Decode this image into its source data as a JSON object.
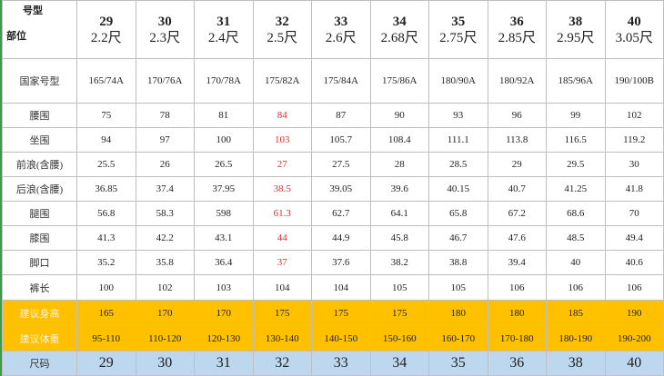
{
  "table": {
    "corner": [
      "号型",
      "部位"
    ],
    "columns": [
      {
        "size": "29",
        "length": "2.2尺"
      },
      {
        "size": "30",
        "length": "2.3尺"
      },
      {
        "size": "31",
        "length": "2.4尺"
      },
      {
        "size": "32",
        "length": "2.5尺"
      },
      {
        "size": "33",
        "length": "2.6尺"
      },
      {
        "size": "34",
        "length": "2.68尺"
      },
      {
        "size": "35",
        "length": "2.75尺"
      },
      {
        "size": "36",
        "length": "2.85尺"
      },
      {
        "size": "38",
        "length": "2.95尺"
      },
      {
        "size": "40",
        "length": "3.05尺"
      }
    ],
    "rows": [
      {
        "label": "国家号型",
        "cells": [
          "165/74A",
          "170/76A",
          "170/78A",
          "175/82A",
          "175/84A",
          "175/86A",
          "180/90A",
          "180/92A",
          "185/96A",
          "190/100B"
        ]
      },
      {
        "label": "腰围",
        "cells": [
          "75",
          "78",
          "81",
          "84",
          "87",
          "90",
          "93",
          "96",
          "99",
          "102"
        ],
        "highlight_cell": 3,
        "highlight_color": "#e0302e"
      },
      {
        "label": "坐围",
        "cells": [
          "94",
          "97",
          "100",
          "103",
          "105.7",
          "108.4",
          "111.1",
          "113.8",
          "116.5",
          "119.2"
        ],
        "highlight_cell": 3,
        "highlight_color": "#e0302e"
      },
      {
        "label": "前浪(含腰)",
        "cells": [
          "25.5",
          "26",
          "26.5",
          "27",
          "27.5",
          "28",
          "28.5",
          "29",
          "29.5",
          "30"
        ],
        "highlight_cell": 3,
        "highlight_color": "#e0302e"
      },
      {
        "label": "后浪(含腰)",
        "cells": [
          "36.85",
          "37.4",
          "37.95",
          "38.5",
          "39.05",
          "39.6",
          "40.15",
          "40.7",
          "41.25",
          "41.8"
        ],
        "highlight_cell": 3,
        "highlight_color": "#e0302e"
      },
      {
        "label": "腿围",
        "cells": [
          "56.8",
          "58.3",
          "598",
          "61.3",
          "62.7",
          "64.1",
          "65.8",
          "67.2",
          "68.6",
          "70"
        ],
        "highlight_cell": 3,
        "highlight_color": "#e0302e"
      },
      {
        "label": "膝围",
        "cells": [
          "41.3",
          "42.2",
          "43.1",
          "44",
          "44.9",
          "45.8",
          "46.7",
          "47.6",
          "48.5",
          "49.4"
        ],
        "highlight_cell": 3,
        "highlight_color": "#e0302e"
      },
      {
        "label": "脚口",
        "cells": [
          "35.2",
          "35.8",
          "36.4",
          "37",
          "37.6",
          "38.2",
          "38.8",
          "39.4",
          "40",
          "40.6"
        ],
        "highlight_cell": 3,
        "highlight_color": "#e0302e"
      },
      {
        "label": "裤长",
        "cells": [
          "100",
          "102",
          "103",
          "104",
          "104",
          "105",
          "105",
          "106",
          "106",
          "106"
        ]
      },
      {
        "label": "建议身高",
        "cells": [
          "165",
          "170",
          "170",
          "175",
          "175",
          "175",
          "180",
          "180",
          "185",
          "190"
        ],
        "background": "#ffc000",
        "label_color": "#fff2cc"
      },
      {
        "label": "建议体重",
        "cells": [
          "95-110",
          "110-120",
          "120-130",
          "130-140",
          "140-150",
          "150-160",
          "160-170",
          "170-180",
          "180-190",
          "190-200"
        ],
        "background": "#ffc000",
        "label_color": "#fff2cc"
      },
      {
        "label": "尺码",
        "cells": [
          "29",
          "30",
          "31",
          "32",
          "33",
          "34",
          "35",
          "36",
          "38",
          "40"
        ],
        "background": "#bdd7ee",
        "large": true
      }
    ]
  }
}
